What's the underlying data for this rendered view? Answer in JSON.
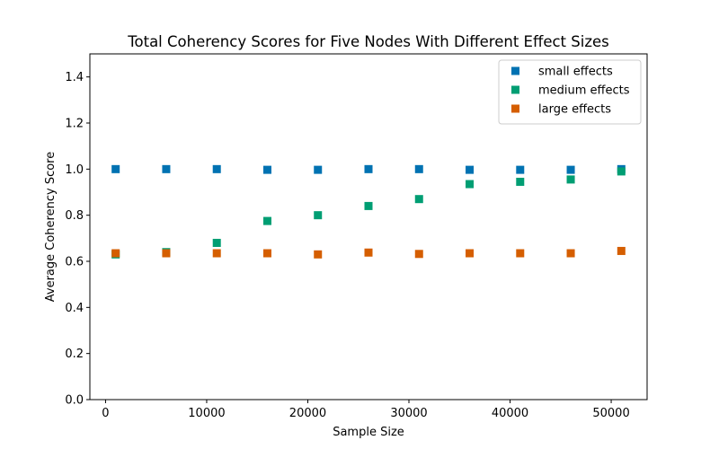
{
  "chart_data": {
    "type": "scatter",
    "title": "Total Coherency Scores for Five Nodes With Different Effect Sizes",
    "xlabel": "Sample Size",
    "ylabel": "Average Coherency Score",
    "xlim": [
      -1550,
      53550
    ],
    "ylim": [
      0.0,
      1.5
    ],
    "xticks": [
      0,
      10000,
      20000,
      30000,
      40000,
      50000
    ],
    "xtick_labels": [
      "0",
      "10000",
      "20000",
      "30000",
      "40000",
      "50000"
    ],
    "yticks": [
      0.0,
      0.2,
      0.4,
      0.6,
      0.8,
      1.0,
      1.2,
      1.4
    ],
    "ytick_labels": [
      "0.0",
      "0.2",
      "0.4",
      "0.6",
      "0.8",
      "1.0",
      "1.2",
      "1.4"
    ],
    "grid": false,
    "legend_position": "top-right",
    "marker": "square",
    "x": [
      1000,
      6000,
      11000,
      16000,
      21000,
      26000,
      31000,
      36000,
      41000,
      46000,
      51000
    ],
    "series": [
      {
        "name": "small effects",
        "color": "#0072b2",
        "values": [
          1.0,
          1.0,
          1.0,
          0.997,
          0.997,
          1.0,
          1.0,
          0.997,
          0.997,
          0.997,
          1.0
        ]
      },
      {
        "name": "medium effects",
        "color": "#009e73",
        "values": [
          0.63,
          0.64,
          0.68,
          0.775,
          0.8,
          0.84,
          0.87,
          0.935,
          0.945,
          0.955,
          0.99
        ]
      },
      {
        "name": "large effects",
        "color": "#d55e00",
        "values": [
          0.635,
          0.635,
          0.635,
          0.635,
          0.63,
          0.638,
          0.632,
          0.635,
          0.635,
          0.635,
          0.645
        ]
      }
    ]
  }
}
